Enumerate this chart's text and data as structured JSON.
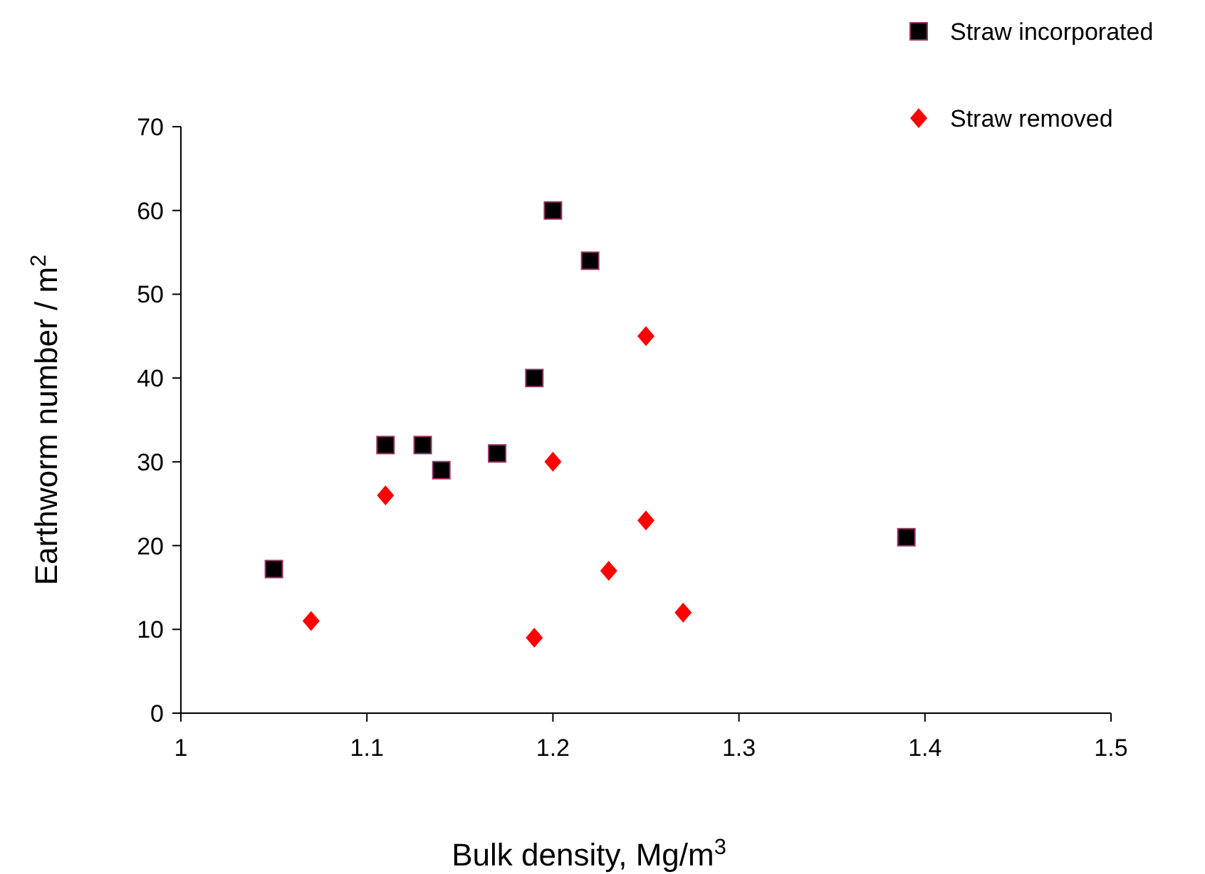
{
  "chart_data": {
    "type": "scatter",
    "xlabel": "Bulk density, Mg/m$^{3}$",
    "ylabel": "Earthworm number / m$^{2}$",
    "xlim": [
      1,
      1.5
    ],
    "xticks": [
      1,
      1.1,
      1.2,
      1.3,
      1.4,
      1.5
    ],
    "ylim": [
      0,
      70
    ],
    "yticks": [
      0,
      10,
      20,
      30,
      40,
      50,
      60,
      70
    ],
    "grid": false,
    "legend": "top right",
    "series": [
      {
        "name": "Straw incorporated",
        "color": "#000000",
        "marker": "square",
        "x": [
          1.05,
          1.11,
          1.13,
          1.14,
          1.17,
          1.19,
          1.2,
          1.22,
          1.39
        ],
        "values": [
          17.2,
          32,
          32,
          29,
          31,
          40,
          60,
          54,
          21
        ]
      },
      {
        "name": "Straw removed",
        "color": "#ff0000",
        "marker": "diamond",
        "x": [
          1.07,
          1.11,
          1.19,
          1.2,
          1.23,
          1.25,
          1.25,
          1.27
        ],
        "values": [
          11,
          26,
          9,
          30,
          17,
          45,
          23,
          12
        ]
      }
    ]
  }
}
